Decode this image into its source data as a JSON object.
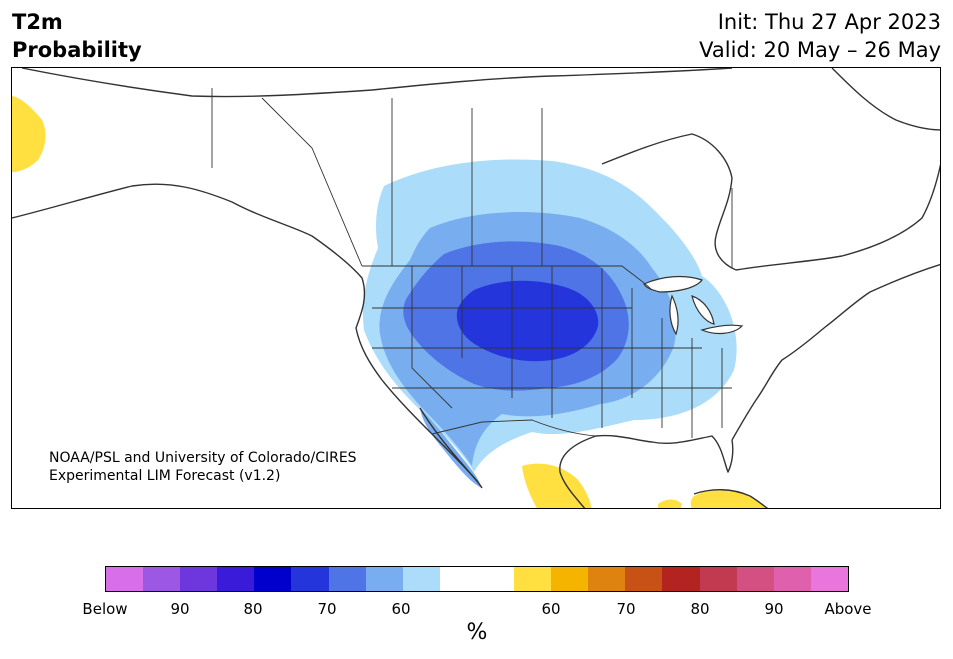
{
  "header": {
    "title_line1": "T2m",
    "title_line2": "Probability",
    "init_text": "Init: Thu 27 Apr 2023",
    "valid_text": "Valid: 20 May – 26 May"
  },
  "map": {
    "credit_line1": "NOAA/PSL and University of Colorado/CIRES",
    "credit_line2": "Experimental LIM Forecast (v1.2)",
    "below_region_levels": [
      "60",
      "70",
      "80"
    ],
    "above_region_levels": [
      "60"
    ]
  },
  "colorbar": {
    "unit": "%",
    "colors": [
      "#d66fe8",
      "#9d58e3",
      "#6e37dd",
      "#3a1bd9",
      "#0000cc",
      "#2436db",
      "#4f74e6",
      "#78aef0",
      "#abdcfa",
      "#ffffff",
      "#ffffff",
      "#ffe040",
      "#f4b400",
      "#df8310",
      "#c85216",
      "#b32420",
      "#c23a50",
      "#d35082",
      "#df60ad",
      "#e876dd"
    ],
    "tick_labels": [
      "Below",
      "90",
      "80",
      "70",
      "60",
      "60",
      "70",
      "80",
      "90",
      "Above"
    ]
  }
}
